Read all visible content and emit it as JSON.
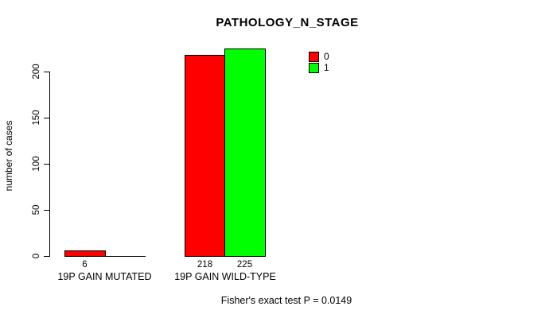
{
  "title": "PATHOLOGY_N_STAGE",
  "ylabel": "number of cases",
  "annotation": "Fisher's exact test P = 0.0149",
  "colors": {
    "series0": "#FF0000",
    "series1": "#00FF00",
    "axis": "#000000",
    "background": "#FFFFFF"
  },
  "chart_data": {
    "type": "bar",
    "title": "PATHOLOGY_N_STAGE",
    "xlabel": "",
    "ylabel": "number of cases",
    "categories": [
      "19P GAIN MUTATED",
      "19P GAIN WILD-TYPE"
    ],
    "series": [
      {
        "name": "0",
        "color": "#FF0000",
        "values": [
          6,
          218
        ]
      },
      {
        "name": "1",
        "color": "#00FF00",
        "values": [
          0,
          225
        ]
      }
    ],
    "bar_value_labels": [
      [
        "6",
        ""
      ],
      [
        "218",
        "225"
      ]
    ],
    "yticks": [
      0,
      50,
      100,
      150,
      200
    ],
    "ylim": [
      0,
      230
    ],
    "grid": false,
    "legend_position": "top-right",
    "legend_entries": [
      "0",
      "1"
    ],
    "annotation": "Fisher's exact test P = 0.0149"
  }
}
